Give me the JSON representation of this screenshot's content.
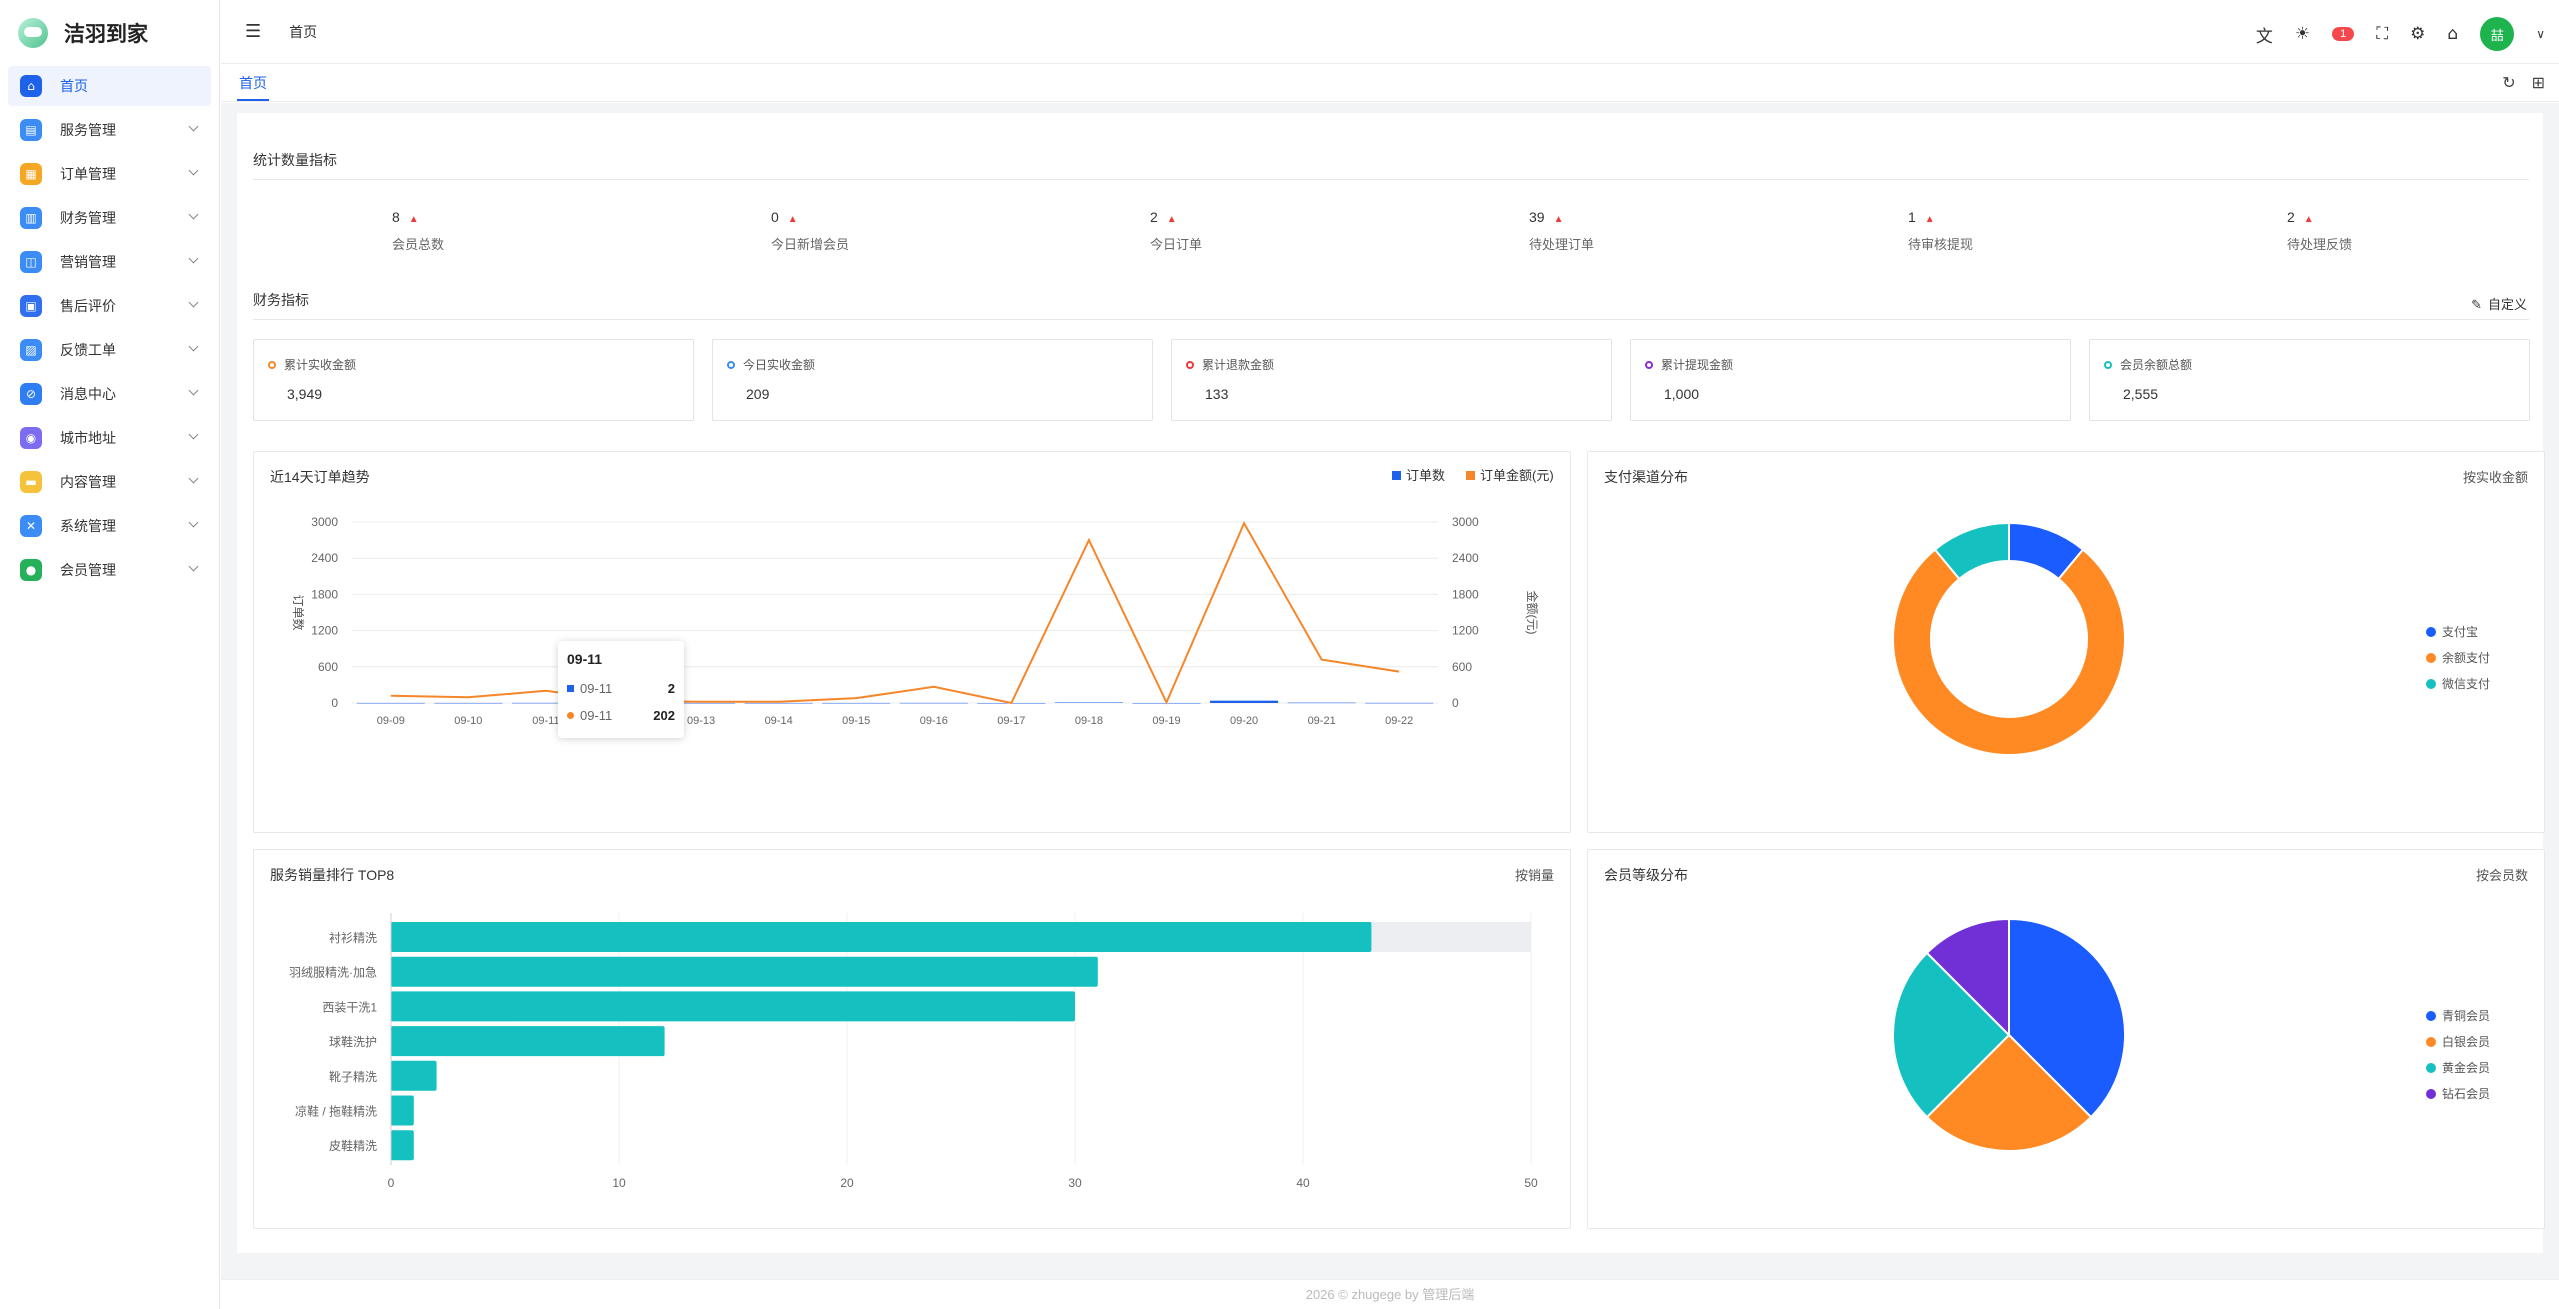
{
  "app": {
    "name": "洁羽到家"
  },
  "sidebar": {
    "items": [
      {
        "label": "首页",
        "icon": "home-icon",
        "color": "#1e62ec",
        "glyph": "⌂"
      },
      {
        "label": "服务管理",
        "icon": "clipboard-icon",
        "color": "#3b8cf5",
        "glyph": "▤"
      },
      {
        "label": "订单管理",
        "icon": "order-icon",
        "color": "#f5a623",
        "glyph": "▦"
      },
      {
        "label": "财务管理",
        "icon": "finance-icon",
        "color": "#3b8cf5",
        "glyph": "▥"
      },
      {
        "label": "营销管理",
        "icon": "marketing-icon",
        "color": "#3b8cf5",
        "glyph": "◫"
      },
      {
        "label": "售后评价",
        "icon": "grid-icon",
        "color": "#2f6ff0",
        "glyph": "▣"
      },
      {
        "label": "反馈工单",
        "icon": "feedback-icon",
        "color": "#3b8cf5",
        "glyph": "▨"
      },
      {
        "label": "消息中心",
        "icon": "link-icon",
        "color": "#2f7df2",
        "glyph": "⊘"
      },
      {
        "label": "城市地址",
        "icon": "planet-icon",
        "color": "#7b6cf0",
        "glyph": "◉"
      },
      {
        "label": "内容管理",
        "icon": "folder-icon",
        "color": "#f5c33b",
        "glyph": "▬"
      },
      {
        "label": "系统管理",
        "icon": "tools-icon",
        "color": "#3b8cf5",
        "glyph": "✕"
      },
      {
        "label": "会员管理",
        "icon": "user-icon",
        "color": "#27b05a",
        "glyph": "●"
      }
    ]
  },
  "header": {
    "breadcrumb": "首页",
    "badge": "1",
    "avatar_text": "喆"
  },
  "tabs": [
    {
      "label": "首页"
    }
  ],
  "stats": {
    "title": "统计数量指标",
    "items": [
      {
        "value": "8",
        "label": "会员总数"
      },
      {
        "value": "0",
        "label": "今日新增会员"
      },
      {
        "value": "2",
        "label": "今日订单"
      },
      {
        "value": "39",
        "label": "待处理订单"
      },
      {
        "value": "1",
        "label": "待审核提现"
      },
      {
        "value": "2",
        "label": "待处理反馈"
      }
    ]
  },
  "finance": {
    "title": "财务指标",
    "custom_label": "自定义",
    "items": [
      {
        "label": "累计实收金额",
        "value": "3,949",
        "color": "#f5862a"
      },
      {
        "label": "今日实收金额",
        "value": "209",
        "color": "#3b8cf5"
      },
      {
        "label": "累计退款金额",
        "value": "133",
        "color": "#f03a3a"
      },
      {
        "label": "累计提现金额",
        "value": "1,000",
        "color": "#8b2ed6"
      },
      {
        "label": "会员余额总额",
        "value": "2,555",
        "color": "#14c0c0"
      }
    ]
  },
  "trend_card": {
    "title": "近14天订单趋势"
  },
  "pay_card": {
    "title": "支付渠道分布",
    "extra": "按实收金额"
  },
  "service_card": {
    "title": "服务销量排行 TOP8",
    "extra": "按销量"
  },
  "level_card": {
    "title": "会员等级分布",
    "extra": "按会员数"
  },
  "tooltip": {
    "title": "09-11",
    "rows": [
      {
        "label": "09-11",
        "value": "2"
      },
      {
        "label": "09-11",
        "value": "202"
      }
    ]
  },
  "chart_data": [
    {
      "type": "line",
      "title": "近14天订单趋势",
      "x": [
        "09-09",
        "09-10",
        "09-11",
        "09-12",
        "09-13",
        "09-14",
        "09-15",
        "09-16",
        "09-17",
        "09-18",
        "09-19",
        "09-20",
        "09-21",
        "09-22"
      ],
      "ylabel": "订单数",
      "y2label": "金额(元)",
      "ylim": [
        0,
        3000
      ],
      "yticks": [
        0,
        600,
        1200,
        1800,
        2400,
        3000
      ],
      "legend_position": "top-right",
      "series": [
        {
          "name": "订单数",
          "type": "bar",
          "axis": "left",
          "color": "#1e62ec",
          "values": [
            1,
            1,
            2,
            1,
            1,
            1,
            1,
            2,
            0,
            9,
            0,
            39,
            6,
            2
          ]
        },
        {
          "name": "订单金额(元)",
          "type": "line",
          "axis": "right",
          "color": "#f5862a",
          "values": [
            120,
            95,
            202,
            30,
            20,
            20,
            80,
            270,
            0,
            2700,
            10,
            2980,
            720,
            520
          ]
        }
      ]
    },
    {
      "type": "pie",
      "title": "支付渠道分布",
      "donut": true,
      "legend_position": "right",
      "labels": [
        "支付宝",
        "余额支付",
        "微信支付"
      ],
      "values": [
        11,
        78,
        11
      ],
      "colors": [
        "#1a5cff",
        "#ff8a24",
        "#14c0c0"
      ]
    },
    {
      "type": "bar",
      "orientation": "horizontal",
      "title": "服务销量排行 TOP8",
      "categories": [
        "衬衫精洗",
        "羽绒服精洗·加急",
        "西装干洗1",
        "球鞋洗护",
        "靴子精洗",
        "凉鞋 / 拖鞋精洗",
        "皮鞋精洗"
      ],
      "values": [
        43,
        31,
        30,
        12,
        2,
        1,
        1
      ],
      "xlim": [
        0,
        50
      ],
      "xticks": [
        0,
        10,
        20,
        30,
        40,
        50
      ],
      "color": "#14c0c0"
    },
    {
      "type": "pie",
      "title": "会员等级分布",
      "legend_position": "right",
      "labels": [
        "青铜会员",
        "白银会员",
        "黄金会员",
        "钻石会员"
      ],
      "values": [
        3,
        2,
        2,
        1
      ],
      "colors": [
        "#1a5cff",
        "#ff8a24",
        "#14c0c0",
        "#7130d6"
      ]
    }
  ],
  "footer": {
    "text": "2026 © zhugege by 管理后端"
  }
}
